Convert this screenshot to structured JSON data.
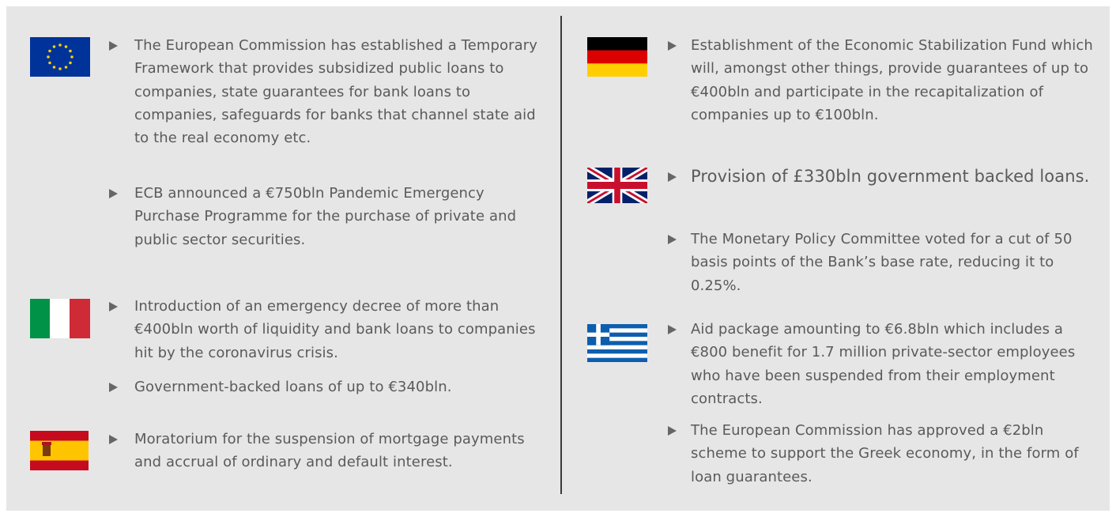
{
  "columns": [
    {
      "groups": [
        {
          "items": [
            "The European Commission has established a Temporary Framework that provides subsidized public loans to companies, state guarantees for bank loans to companies, safeguards for banks that channel state aid to the real economy etc.",
            "ECB announced a €750bln Pandemic Emergency Purchase Programme for the purchase of private and public sector securities."
          ]
        },
        {
          "items": [
            "Introduction of an emergency decree of more than €400bln worth of liquidity and bank loans to companies hit by the coronavirus crisis.",
            "Government-backed loans of up to €340bln."
          ]
        },
        {
          "items": [
            "Moratorium for the suspension of mortgage payments and accrual of ordinary and default interest."
          ]
        }
      ]
    },
    {
      "groups": [
        {
          "items": [
            "Establishment of the Economic Stabilization Fund which will, amongst other things, provide guarantees of up to €400bln and participate in the recapitalization of companies up to €100bln."
          ]
        },
        {
          "items": [
            "Provision of £330bln government backed loans.",
            "The Monetary Policy Committee voted for a cut of 50 basis points of the Bank’s base rate, reducing it to 0.25%."
          ]
        },
        {
          "items": [
            "Aid package amounting to €6.8bln which includes a €800 benefit for 1.7 million private-sector employees who have been suspended from their employment contracts.",
            "The European Commission has approved a €2bln scheme to support the Greek economy, in the form of loan guarantees."
          ]
        }
      ]
    }
  ]
}
